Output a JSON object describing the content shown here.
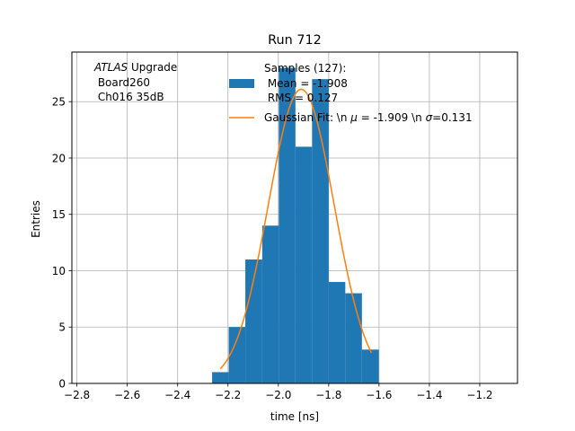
{
  "chart_data": {
    "type": "bar",
    "title": "Run 712",
    "xlabel": "time [ns]",
    "ylabel": "Entries",
    "xlim": [
      -2.82,
      -1.05
    ],
    "ylim": [
      0,
      29.4
    ],
    "grid": true,
    "xticks": [
      -2.8,
      -2.6,
      -2.4,
      -2.2,
      -2.0,
      -1.8,
      -1.6,
      -1.4,
      -1.2
    ],
    "xtick_labels": [
      "−2.8",
      "−2.6",
      "−2.4",
      "−2.2",
      "−2.0",
      "−1.8",
      "−1.6",
      "−1.4",
      "−1.2"
    ],
    "yticks": [
      0,
      5,
      10,
      15,
      20,
      25
    ],
    "ytick_labels": [
      "0",
      "5",
      "10",
      "15",
      "20",
      "25"
    ],
    "annotation": {
      "line1_italic": "ATLAS",
      "line1_rest": " Upgrade",
      "line2": " Board260",
      "line3": " Ch016 35dB"
    },
    "histogram": {
      "name_lines": [
        "Samples (127):",
        " Mean = -1.908",
        " RMS = 0.127"
      ],
      "color": "#1f77b4",
      "bins": [
        {
          "x0": -2.263,
          "x1": -2.197,
          "count": 1
        },
        {
          "x0": -2.197,
          "x1": -2.131,
          "count": 5
        },
        {
          "x0": -2.131,
          "x1": -2.064,
          "count": 11
        },
        {
          "x0": -2.064,
          "x1": -1.998,
          "count": 14
        },
        {
          "x0": -1.998,
          "x1": -1.932,
          "count": 28
        },
        {
          "x0": -1.932,
          "x1": -1.866,
          "count": 21
        },
        {
          "x0": -1.866,
          "x1": -1.8,
          "count": 27
        },
        {
          "x0": -1.8,
          "x1": -1.734,
          "count": 9
        },
        {
          "x0": -1.734,
          "x1": -1.668,
          "count": 8
        },
        {
          "x0": -1.668,
          "x1": -1.601,
          "count": 3
        }
      ]
    },
    "fit": {
      "name_prefix": "Gaussian Fit: \\n ",
      "mu_symbol": "μ",
      "mu_part": " = -1.909 \\n ",
      "sigma_symbol": "σ",
      "sigma_part": "=0.131",
      "color": "#ff7f0e",
      "mu": -1.909,
      "sigma": 0.131,
      "amplitude": 26.1,
      "x_range": [
        -2.23,
        -1.63
      ]
    },
    "legend_position": "upper center"
  }
}
